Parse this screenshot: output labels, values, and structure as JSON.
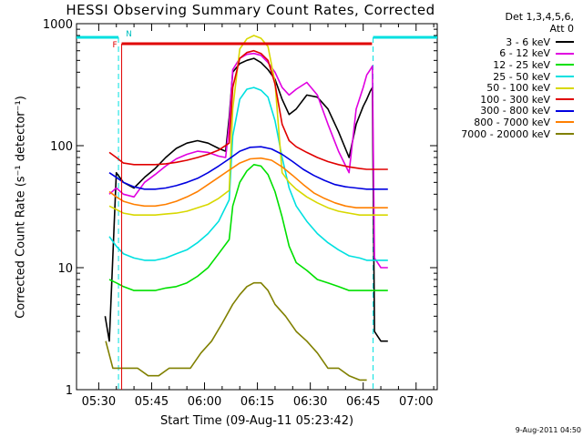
{
  "chart_data": {
    "type": "line",
    "title": "HESSI Observing Summary Count Rates, Corrected",
    "xlabel": "Start Time (09-Aug-11 05:23:42)",
    "ylabel": "Corrected Count Rate (s⁻¹ detector⁻¹)",
    "y_scale": "log",
    "ylim": [
      1,
      1000
    ],
    "y_ticks": [
      "1",
      "10",
      "100",
      "1000"
    ],
    "x_ticks": [
      "05:30",
      "05:45",
      "06:00",
      "06:15",
      "06:30",
      "06:45",
      "07:00"
    ],
    "x_tick_minutes": [
      330,
      345,
      360,
      375,
      390,
      405,
      420
    ],
    "xlim_minutes": [
      323.7,
      426
    ],
    "legend_header": [
      "Det 1,3,4,5,6,",
      "Att 0"
    ],
    "legend_position": "outside-right",
    "markers": {
      "night_label": "N",
      "flare_label": "F",
      "night_intervals": [
        [
          323.7,
          335.6
        ],
        [
          407.8,
          426
        ]
      ],
      "flare_interval": [
        336.5,
        407.5
      ]
    },
    "series": [
      {
        "name": "3 - 6 keV",
        "color": "#000000",
        "x": [
          331.8,
          333,
          335,
          337,
          340,
          343,
          346,
          349,
          352,
          355,
          358,
          361,
          364,
          366,
          367,
          368,
          370,
          372,
          374,
          376,
          378,
          380,
          382,
          384,
          386,
          389,
          392,
          395,
          398,
          401,
          403,
          405,
          406,
          407,
          407.6,
          408.2,
          410,
          412
        ],
        "y": [
          4,
          2.5,
          60,
          50,
          45,
          55,
          65,
          80,
          95,
          105,
          110,
          105,
          95,
          90,
          170,
          400,
          470,
          500,
          520,
          480,
          420,
          350,
          240,
          180,
          200,
          260,
          250,
          200,
          130,
          80,
          150,
          210,
          240,
          280,
          300,
          3,
          2.5,
          2.5
        ]
      },
      {
        "name": "6 - 12 keV",
        "color": "#e000e0",
        "x": [
          333,
          335,
          337,
          340,
          343,
          346,
          349,
          352,
          355,
          358,
          361,
          364,
          366,
          367,
          368,
          370,
          372,
          374,
          376,
          378,
          380,
          382,
          384,
          386,
          389,
          392,
          395,
          398,
          401,
          403,
          405,
          406,
          407,
          407.6,
          408.2,
          410,
          412
        ],
        "y": [
          40,
          45,
          40,
          38,
          50,
          58,
          68,
          78,
          85,
          90,
          88,
          82,
          80,
          150,
          420,
          520,
          560,
          570,
          550,
          480,
          400,
          300,
          260,
          290,
          330,
          260,
          150,
          90,
          60,
          200,
          300,
          380,
          420,
          450,
          12,
          10,
          10
        ]
      },
      {
        "name": "12 - 25 keV",
        "color": "#00e000",
        "x": [
          333,
          335,
          337,
          340,
          343,
          346,
          349,
          352,
          355,
          358,
          361,
          364,
          367,
          368,
          370,
          372,
          374,
          376,
          378,
          380,
          382,
          384,
          386,
          389,
          392,
          395,
          398,
          401,
          404,
          406,
          407,
          407.6,
          408.2,
          410,
          412
        ],
        "y": [
          8,
          7.5,
          7,
          6.5,
          6.5,
          6.5,
          6.8,
          7,
          7.5,
          8.5,
          10,
          13,
          17,
          32,
          50,
          62,
          70,
          68,
          58,
          42,
          26,
          15,
          11,
          9.5,
          8,
          7.5,
          7,
          6.5,
          6.5,
          6.5,
          6.5,
          6.5,
          6.5,
          6.5,
          6.5
        ]
      },
      {
        "name": "25 - 50 keV",
        "color": "#00e0e0",
        "x": [
          333,
          335,
          337,
          340,
          343,
          346,
          349,
          352,
          355,
          358,
          361,
          364,
          367,
          368,
          370,
          372,
          374,
          376,
          378,
          380,
          382,
          384,
          386,
          389,
          392,
          395,
          398,
          401,
          404,
          406,
          407,
          407.6,
          408.2,
          410,
          412
        ],
        "y": [
          18,
          15,
          13,
          12,
          11.5,
          11.5,
          12,
          13,
          14,
          16,
          19,
          24,
          36,
          120,
          240,
          290,
          300,
          285,
          250,
          160,
          80,
          45,
          32,
          24,
          19,
          16,
          14,
          12.5,
          12,
          11.5,
          11.5,
          11.5,
          11.5,
          11.5,
          11.5
        ]
      },
      {
        "name": "50 - 100 keV",
        "color": "#d8d800",
        "x": [
          333,
          335,
          337,
          340,
          343,
          346,
          349,
          352,
          355,
          358,
          361,
          364,
          367,
          368,
          370,
          372,
          374,
          376,
          378,
          380,
          382,
          384,
          386,
          389,
          392,
          395,
          398,
          401,
          404,
          406,
          407,
          407.6,
          408.2,
          410,
          412
        ],
        "y": [
          32,
          30,
          28,
          27,
          27,
          27,
          27.5,
          28,
          29,
          31,
          33,
          37,
          43,
          200,
          620,
          750,
          800,
          760,
          650,
          330,
          60,
          50,
          44,
          38,
          34,
          31,
          29,
          28,
          27,
          27,
          27,
          27,
          27,
          27,
          27
        ]
      },
      {
        "name": "100 - 300 keV",
        "color": "#e00000",
        "x": [
          333,
          335,
          337,
          340,
          343,
          346,
          349,
          352,
          355,
          358,
          361,
          364,
          367,
          368,
          370,
          372,
          374,
          376,
          378,
          380,
          382,
          384,
          386,
          389,
          392,
          395,
          398,
          401,
          404,
          406,
          407,
          407.6,
          408.2,
          410,
          412
        ],
        "y": [
          88,
          80,
          72,
          70,
          70,
          70,
          71,
          73,
          76,
          80,
          85,
          92,
          105,
          300,
          520,
          580,
          600,
          570,
          500,
          320,
          150,
          110,
          98,
          88,
          80,
          74,
          70,
          67,
          65,
          64,
          64,
          64,
          64,
          64,
          64
        ]
      },
      {
        "name": "300 - 800 keV",
        "color": "#0000e0",
        "x": [
          333,
          335,
          337,
          340,
          343,
          346,
          349,
          352,
          355,
          358,
          361,
          364,
          367,
          370,
          373,
          376,
          379,
          382,
          385,
          388,
          391,
          394,
          397,
          400,
          403,
          406,
          407,
          407.6,
          408.2,
          410,
          412
        ],
        "y": [
          60,
          55,
          50,
          46,
          44,
          44,
          45,
          47,
          50,
          54,
          60,
          68,
          78,
          90,
          97,
          98,
          94,
          85,
          74,
          64,
          57,
          52,
          48,
          46,
          45,
          44,
          44,
          44,
          44,
          44,
          44
        ]
      },
      {
        "name": "800 - 7000 keV",
        "color": "#ff7f00",
        "x": [
          333,
          335,
          337,
          340,
          343,
          346,
          349,
          352,
          355,
          358,
          361,
          364,
          367,
          370,
          373,
          376,
          379,
          382,
          385,
          388,
          391,
          394,
          397,
          400,
          403,
          406,
          407,
          407.6,
          408.2,
          410,
          412
        ],
        "y": [
          42,
          38,
          35,
          33,
          32,
          32,
          33,
          35,
          38,
          42,
          48,
          55,
          63,
          72,
          78,
          79,
          76,
          67,
          57,
          48,
          41,
          37,
          34,
          32,
          31,
          31,
          31,
          31,
          31,
          31,
          31
        ]
      },
      {
        "name": "7000 - 20000 keV",
        "color": "#808000",
        "x": [
          332,
          334,
          336,
          338,
          341,
          344,
          347,
          350,
          353,
          356,
          359,
          362,
          365,
          368,
          370,
          372,
          374,
          376,
          378,
          380,
          383,
          386,
          389,
          392,
          395,
          398,
          401,
          404,
          406
        ],
        "y": [
          2.5,
          1.5,
          1.5,
          1.5,
          1.5,
          1.3,
          1.3,
          1.5,
          1.5,
          1.5,
          2,
          2.5,
          3.5,
          5,
          6,
          7,
          7.5,
          7.5,
          6.5,
          5,
          4,
          3,
          2.5,
          2,
          1.5,
          1.5,
          1.3,
          1.2,
          1.2
        ]
      }
    ]
  },
  "footer": {
    "timestamp": "9-Aug-2011 04:50"
  }
}
